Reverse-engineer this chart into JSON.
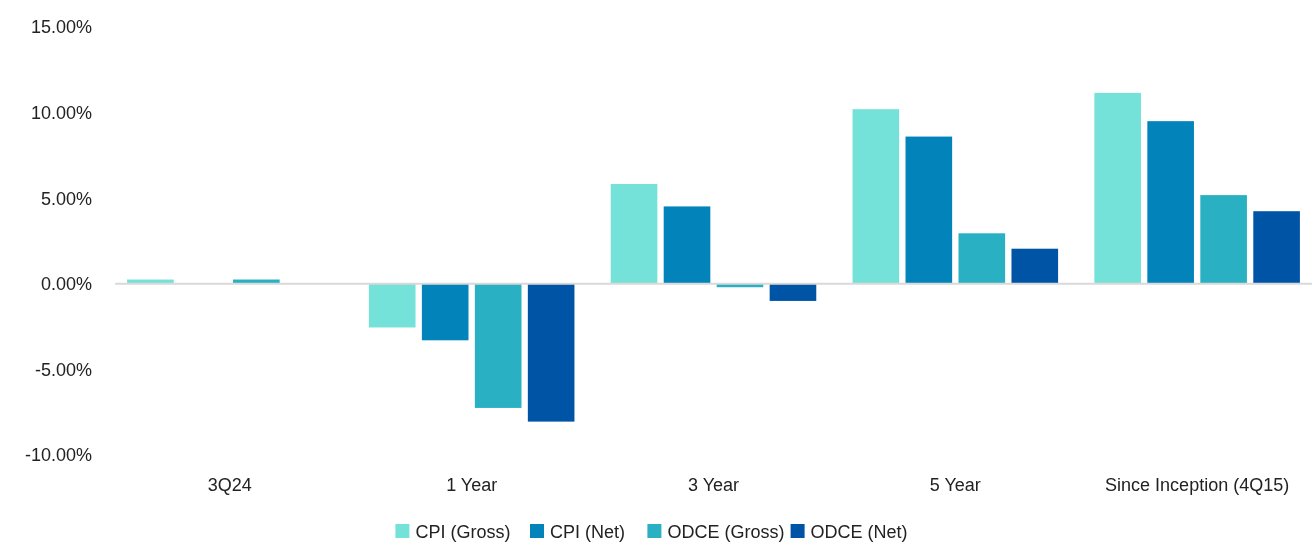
{
  "chart_data": {
    "type": "bar",
    "categories": [
      "3Q24",
      "1 Year",
      "3 Year",
      "5 Year",
      "Since Inception (4Q15)"
    ],
    "series": [
      {
        "name": "CPI (Gross)",
        "color": "#74e2d9",
        "values": [
          0.25,
          -2.55,
          5.83,
          10.2,
          11.15
        ]
      },
      {
        "name": "CPI (Net)",
        "color": "#0284bb",
        "values": [
          null,
          -3.3,
          4.52,
          8.6,
          9.5
        ]
      },
      {
        "name": "ODCE (Gross)",
        "color": "#2ab0c3",
        "values": [
          0.25,
          -7.25,
          -0.2,
          2.95,
          5.18
        ]
      },
      {
        "name": "ODCE (Net)",
        "color": "#0054a6",
        "values": [
          null,
          -8.05,
          -1.0,
          2.05,
          4.24
        ]
      }
    ],
    "ylim": [
      -10,
      15
    ],
    "yticks": [
      {
        "value": -10,
        "label": "-10.00%"
      },
      {
        "value": -5,
        "label": "-5.00%"
      },
      {
        "value": 0,
        "label": "0.00%"
      },
      {
        "value": 5,
        "label": "5.00%"
      },
      {
        "value": 10,
        "label": "10.00%"
      },
      {
        "value": 15,
        "label": "15.00%"
      }
    ],
    "legend": "bottom"
  }
}
